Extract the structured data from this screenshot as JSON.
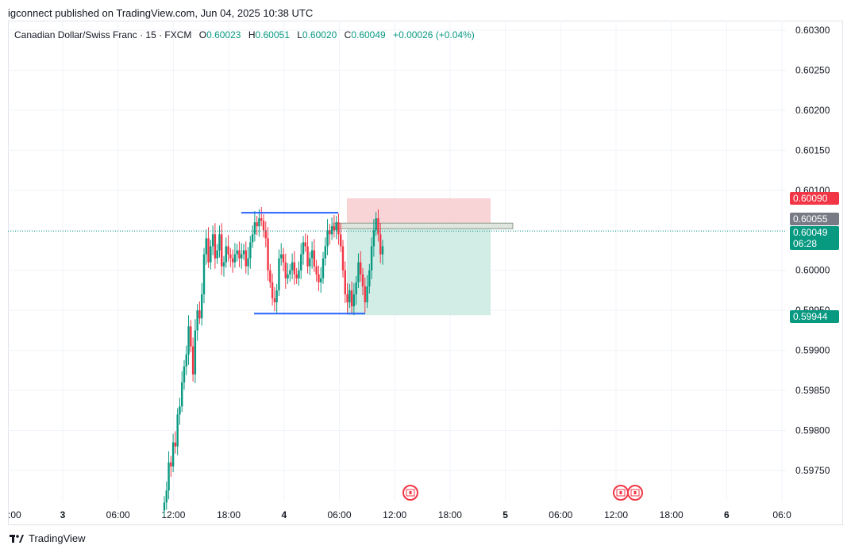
{
  "publisher_line": "igconnect published on TradingView.com, Jun 04, 2025 10:38 UTC",
  "legend": {
    "symbol": "Canadian Dollar/Swiss Franc · 15 · FXCM",
    "o_label": "O",
    "o_value": "0.60023",
    "h_label": "H",
    "h_value": "0.60051",
    "l_label": "L",
    "l_value": "0.60020",
    "c_label": "C",
    "c_value": "0.60049",
    "change": "+0.00026 (+0.04%)"
  },
  "price_tags": {
    "stop": "0.60090",
    "entry": "0.60055",
    "last": "0.60049",
    "countdown": "06:28",
    "target": "0.59944"
  },
  "brand": "TradingView",
  "colors": {
    "up": "#089981",
    "down": "#f23645",
    "trendline": "#2962ff",
    "stop_zone": "#f7c9cd",
    "target_zone": "#cdeae3",
    "entry_tag": "#787b86"
  },
  "chart_data": {
    "type": "candlestick",
    "timeframe": "15",
    "y_axis": {
      "ylim": [
        0.59715,
        0.60315
      ],
      "ticks": [
        "0.60300",
        "0.60250",
        "0.60200",
        "0.60150",
        "0.60100",
        "0.60050",
        "0.60000",
        "0.59950",
        "0.59900",
        "0.59850",
        "0.59800",
        "0.59750"
      ]
    },
    "x_axis": {
      "ticks": [
        {
          "label": "3",
          "bold": true
        },
        {
          "label": "06:00"
        },
        {
          "label": "12:00"
        },
        {
          "label": "18:00"
        },
        {
          "label": "4",
          "bold": true
        },
        {
          "label": "06:00"
        },
        {
          "label": "12:00"
        },
        {
          "label": "18:00"
        },
        {
          "label": "5",
          "bold": true
        },
        {
          "label": "06:00"
        },
        {
          "label": "12:00"
        },
        {
          "label": "18:00"
        },
        {
          "label": "6",
          "bold": true
        },
        {
          "label": "06:0"
        }
      ],
      "left_partial_label": ":00"
    },
    "last_price": 0.60049,
    "position": {
      "entry": 0.60055,
      "stop": 0.6009,
      "target": 0.59944
    },
    "range_lines": {
      "top": 0.60072,
      "bottom": 0.59946
    },
    "events": [
      "canada-flag",
      "canada-flag",
      "canada-flag"
    ],
    "closes": [
      0.5971,
      0.59725,
      0.5976,
      0.59755,
      0.59785,
      0.5978,
      0.5982,
      0.5983,
      0.5986,
      0.5988,
      0.59895,
      0.5993,
      0.59905,
      0.5987,
      0.59925,
      0.5995,
      0.5994,
      0.5997,
      0.6002,
      0.6004,
      0.6001,
      0.6003,
      0.60045,
      0.60015,
      0.60025,
      0.60045,
      0.60005,
      0.6001,
      0.6003,
      0.6002,
      0.60015,
      0.6001,
      0.6002,
      0.60025,
      0.60015,
      0.6002,
      0.60025,
      0.60005,
      0.60015,
      0.60035,
      0.60045,
      0.6006,
      0.60055,
      0.60065,
      0.60062,
      0.6005,
      0.6004,
      0.6,
      0.59985,
      0.59965,
      0.5996,
      0.59975,
      0.60015,
      0.6002,
      0.6001,
      0.5999,
      0.59995,
      0.6,
      0.6001,
      0.59995,
      0.5999,
      0.6,
      0.6002,
      0.60035,
      0.6003,
      0.60005,
      0.60015,
      0.60025,
      0.60005,
      0.59995,
      0.59985,
      0.5999,
      0.60015,
      0.6003,
      0.6005,
      0.60045,
      0.60055,
      0.6005,
      0.6006,
      0.60045,
      0.6003,
      0.6,
      0.5997,
      0.5996,
      0.59975,
      0.59955,
      0.5997,
      0.59985,
      0.6001,
      0.59995,
      0.5998,
      0.5996,
      0.5998,
      0.6,
      0.6003,
      0.6005,
      0.60065,
      0.60045,
      0.6002,
      0.6003
    ]
  }
}
